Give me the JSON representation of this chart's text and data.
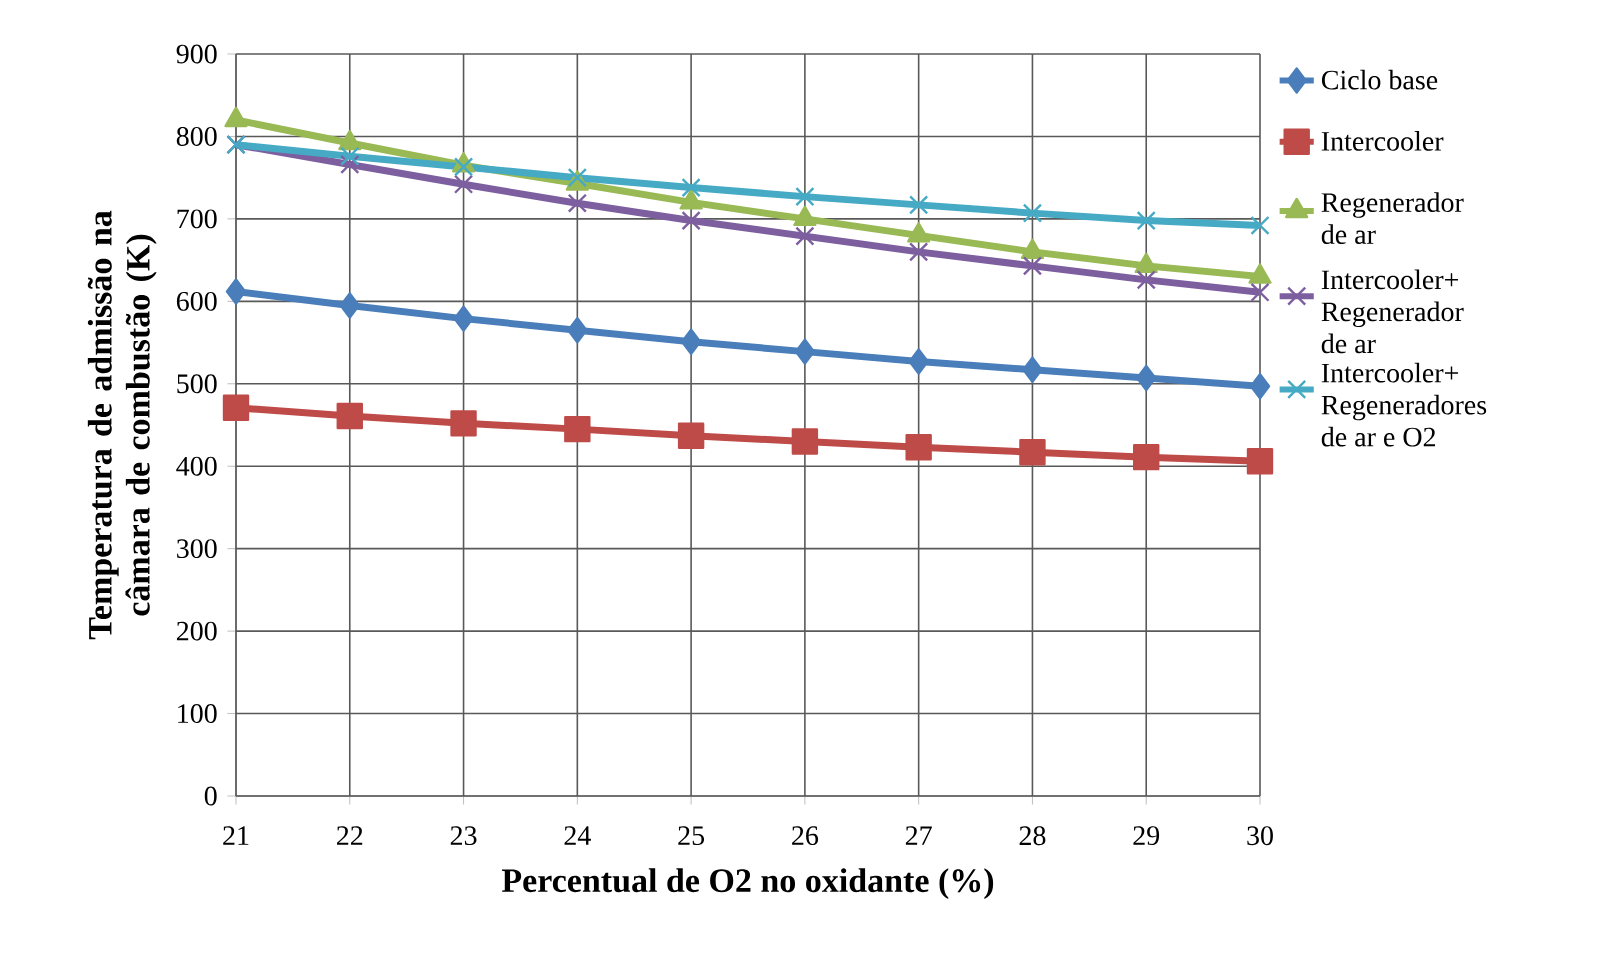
{
  "chart_data": {
    "type": "line",
    "xlabel": "Percentual de O2 no oxidante (%)",
    "ylabel": "Temperatura de admissão na câmara de combustão (K)",
    "x": [
      21,
      22,
      23,
      24,
      25,
      26,
      27,
      28,
      29,
      30
    ],
    "xlim": [
      21,
      30
    ],
    "xticks": [
      21,
      22,
      23,
      24,
      25,
      26,
      27,
      28,
      29,
      30
    ],
    "ylim": [
      0,
      900
    ],
    "yticks": [
      0,
      100,
      200,
      300,
      400,
      500,
      600,
      700,
      800,
      900
    ],
    "grid": true,
    "legend": "right",
    "line_style": "solid",
    "series": [
      {
        "name": "Ciclo base",
        "color": "#4a7ebb",
        "marker": "diamond",
        "values": [
          612,
          595,
          579,
          565,
          551,
          539,
          527,
          517,
          507,
          497
        ]
      },
      {
        "name": "Intercooler",
        "color": "#be4b48",
        "marker": "square",
        "values": [
          471,
          461,
          452,
          445,
          437,
          430,
          423,
          417,
          411,
          406
        ]
      },
      {
        "name": "Regenerador de ar",
        "color": "#98b954",
        "marker": "triangle",
        "values": [
          820,
          792,
          765,
          743,
          720,
          700,
          680,
          660,
          643,
          630
        ]
      },
      {
        "name": "Intercooler+ Regenerador de ar",
        "color": "#7d5fa0",
        "marker": "cross",
        "values": [
          790,
          766,
          742,
          719,
          698,
          679,
          660,
          643,
          626,
          611
        ]
      },
      {
        "name": "Intercooler+ Regeneradores de ar e O2",
        "color": "#46aac5",
        "marker": "cross",
        "values": [
          790,
          776,
          763,
          750,
          738,
          727,
          717,
          707,
          698,
          692
        ]
      }
    ]
  }
}
